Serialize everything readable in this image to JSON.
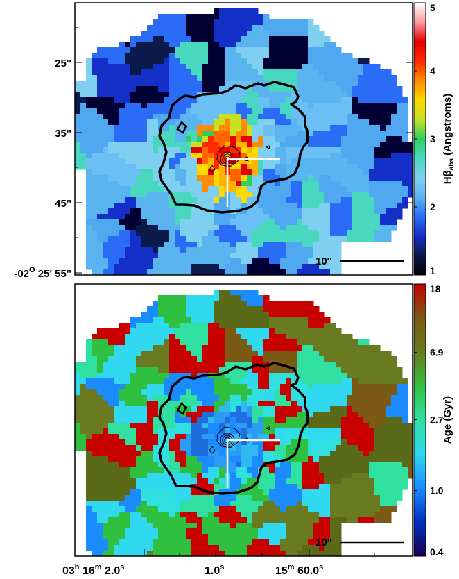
{
  "chart_data": [
    {
      "type": "heatmap",
      "panel": "top",
      "colorbar_label": "Hβabs (Angstroms)",
      "colorbar_label_main": "Hβ",
      "colorbar_label_sub": "abs",
      "colorbar_label_tail": " (Angstroms)",
      "colorbar_ticks": [
        "1",
        "2",
        "3",
        "4",
        "5"
      ],
      "colorbar_range": [
        1,
        5
      ],
      "colorbar_scale": "linear",
      "colormap": [
        "#000000",
        "#0a1a4a",
        "#1530c8",
        "#2a6cf5",
        "#5ab4f0",
        "#7fd0f0",
        "#48d8c0",
        "#30d060",
        "#c8e020",
        "#ffd800",
        "#ff8c00",
        "#ff2a00",
        "#e60000",
        "#ff9aa0",
        "#ffffff"
      ],
      "y_tick_labels": [
        "25''",
        "35''",
        "45''"
      ],
      "y_tick_origin_label": "-02",
      "y_tick_origin_deg": "O",
      "y_tick_origin_rest": " 25' 55''",
      "scale_bar_label": "10''",
      "contours": [
        "thick outer contour",
        "thin inner contours"
      ],
      "value_pattern": "central region ~3-4.5 Å (yellow to red), surroundings ~2-2.5 Å (light blue), outer edges ~1-1.8 Å (dark blue / black)"
    },
    {
      "type": "heatmap",
      "panel": "bottom",
      "colorbar_label": "Age (Gyr)",
      "colorbar_ticks": [
        "0.4",
        "1.0",
        "2.7",
        "6.9",
        "18"
      ],
      "colorbar_range": [
        0.4,
        18
      ],
      "colorbar_scale": "log",
      "colormap": [
        "#1a0050",
        "#0030c0",
        "#1a8cff",
        "#30d8f0",
        "#30e0a0",
        "#30c040",
        "#6a7a20",
        "#7a5a14",
        "#c80000"
      ],
      "x_tick_labels": {
        "t1_h": "03",
        "t1_h_sup": "h",
        "t1_m": " 16",
        "t1_m_sup": "m",
        "t1_s": " 2.0",
        "t1_s_sup": "s",
        "t2_s": "1.0",
        "t2_s_sup": "s",
        "t3_m": "15",
        "t3_m_sup": "m",
        "t3_s": " 60.0",
        "t3_s_sup": "s"
      },
      "scale_bar_label": "10''",
      "contours": [
        "thick outer contour",
        "thin inner contours"
      ],
      "value_pattern": "centre ~1-2 Gyr (blue), surroundings ~2-3 Gyr (cyan), outer bins 5-18 Gyr (green, olive, brown, red)"
    }
  ],
  "colors": {
    "contour": "#000000",
    "slit_marker": "#ffffff",
    "frame": "#000000"
  }
}
